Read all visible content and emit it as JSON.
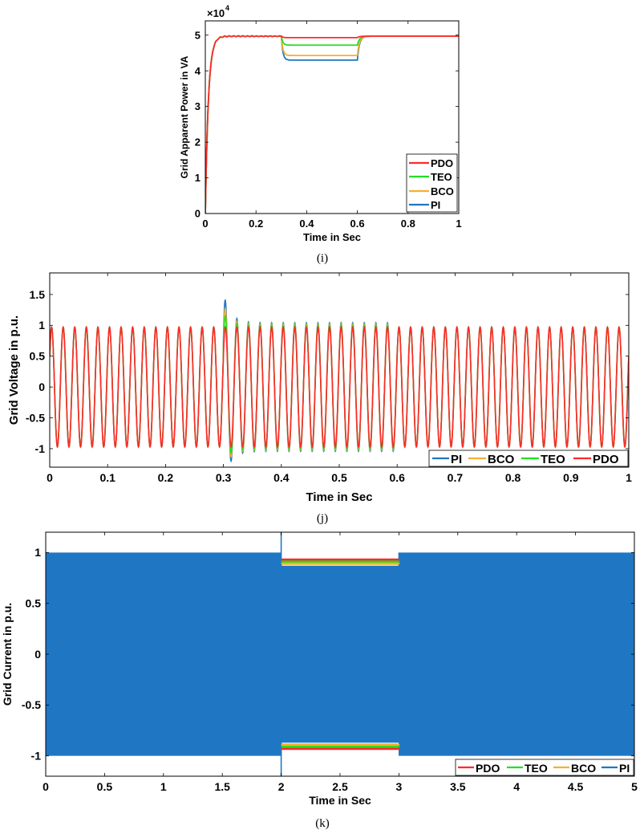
{
  "colors": {
    "PDO": "#ff2a2a",
    "TEO": "#22e022",
    "BCO": "#f5b030",
    "PI": "#1f77c4"
  },
  "chart_data": [
    {
      "id": "i",
      "type": "line",
      "caption": "(i)",
      "xlabel": "Time in Sec",
      "ylabel": "Grid Apparent Power in VA",
      "exponent_label": "×10",
      "exponent_power": "4",
      "xlim": [
        0,
        1
      ],
      "ylim": [
        0,
        5.4
      ],
      "xticks": [
        0,
        0.2,
        0.4,
        0.6,
        0.8,
        1
      ],
      "xtick_labels": [
        "0",
        "0.2",
        "0.4",
        "0.6",
        "0.8",
        "1"
      ],
      "yticks": [
        0,
        1,
        2,
        3,
        4,
        5
      ],
      "ytick_labels": [
        "0",
        "1",
        "2",
        "3",
        "4",
        "5"
      ],
      "legend": [
        "PDO",
        "TEO",
        "BCO",
        "PI"
      ],
      "legend_position": "bottom-right",
      "series": [
        {
          "name": "PDO",
          "x": [
            0.3,
            0.6
          ],
          "y": [
            4.93,
            4.93
          ]
        },
        {
          "name": "TEO",
          "x": [
            0.3,
            0.6
          ],
          "y": [
            4.72,
            4.72
          ]
        },
        {
          "name": "BCO",
          "x": [
            0.3,
            0.6
          ],
          "y": [
            4.43,
            4.43
          ]
        },
        {
          "name": "PI",
          "x": [
            0,
            0.02,
            0.05,
            0.08,
            0.3,
            0.6,
            1
          ],
          "y": [
            0,
            3.2,
            4.85,
            4.97,
            4.97,
            4.3,
            4.97
          ]
        }
      ]
    },
    {
      "id": "j",
      "type": "line",
      "caption": "(j)",
      "xlabel": "Time in Sec",
      "ylabel": "Grid Voltage in p.u.",
      "xlim": [
        0,
        1
      ],
      "ylim": [
        -1.3,
        1.85
      ],
      "xticks": [
        0,
        0.1,
        0.2,
        0.3,
        0.4,
        0.5,
        0.6,
        0.7,
        0.8,
        0.9,
        1
      ],
      "xtick_labels": [
        "0",
        "0.1",
        "0.2",
        "0.3",
        "0.4",
        "0.5",
        "0.6",
        "0.7",
        "0.8",
        "0.9",
        "1"
      ],
      "yticks": [
        -1,
        -0.5,
        0,
        0.5,
        1,
        1.5
      ],
      "ytick_labels": [
        "-1",
        "-0.5",
        "0",
        "0.5",
        "1",
        "1.5"
      ],
      "legend": [
        "PI",
        "BCO",
        "TEO",
        "PDO"
      ],
      "legend_position": "bottom-right",
      "frequency_hz": 50,
      "amplitude": 0.97,
      "disturbance_interval": [
        0.3,
        0.6
      ],
      "series": [
        {
          "name": "PI",
          "amplitude_during_disturbance": 1.04,
          "peak": 1.52
        },
        {
          "name": "BCO",
          "amplitude_during_disturbance": 1.02,
          "peak": 1.35
        },
        {
          "name": "TEO",
          "amplitude_during_disturbance": 1.0,
          "peak": 1.2
        },
        {
          "name": "PDO",
          "amplitude_during_disturbance": 0.97,
          "peak": 0.97
        }
      ]
    },
    {
      "id": "k",
      "type": "line",
      "caption": "(k)",
      "xlabel": "Time in Sec",
      "ylabel": "Grid Current in p.u.",
      "xlim": [
        0,
        5
      ],
      "ylim": [
        -1.2,
        1.2
      ],
      "xticks": [
        0,
        0.5,
        1,
        1.5,
        2,
        2.5,
        3,
        3.5,
        4,
        4.5,
        5
      ],
      "xtick_labels": [
        "0",
        "0.5",
        "1",
        "1.5",
        "2",
        "2.5",
        "3",
        "3.5",
        "4",
        "4.5",
        "5"
      ],
      "yticks": [
        -1,
        -0.5,
        0,
        0.5,
        1
      ],
      "ytick_labels": [
        "-1",
        "-0.5",
        "0",
        "0.5",
        "1"
      ],
      "legend": [
        "PDO",
        "TEO",
        "BCO",
        "PI"
      ],
      "legend_position": "bottom-right",
      "disturbance_interval": [
        2,
        3
      ],
      "series": [
        {
          "name": "PDO",
          "amplitude_normal": 1.0,
          "amplitude_during_disturbance": 0.93
        },
        {
          "name": "TEO",
          "amplitude_normal": 1.0,
          "amplitude_during_disturbance": 0.91
        },
        {
          "name": "BCO",
          "amplitude_normal": 1.0,
          "amplitude_during_disturbance": 0.89
        },
        {
          "name": "PI",
          "amplitude_normal": 1.0,
          "amplitude_during_disturbance": 0.87
        }
      ]
    }
  ]
}
